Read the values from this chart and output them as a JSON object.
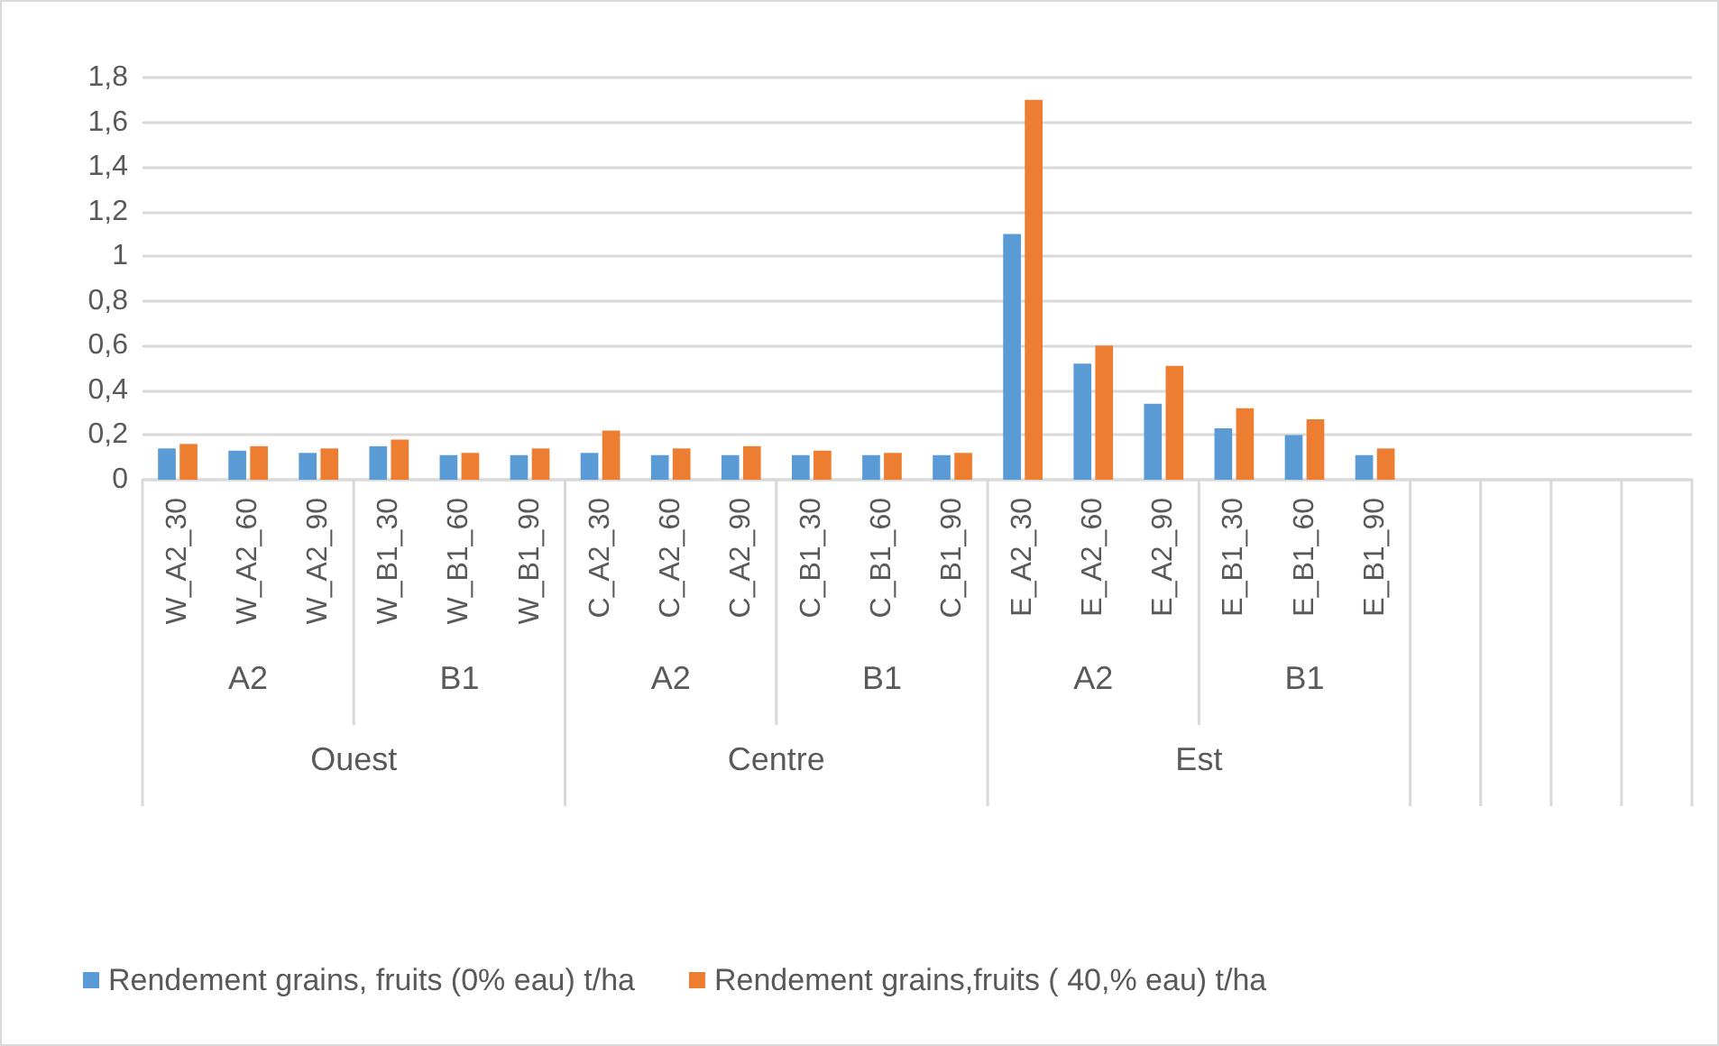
{
  "chart_data": {
    "type": "bar",
    "categories": [
      "W_A2_30",
      "W_A2_60",
      "W_A2_90",
      "W_B1_30",
      "W_B1_60",
      "W_B1_90",
      "C_A2_30",
      "C_A2_60",
      "C_A2_90",
      "C_B1_30",
      "C_B1_60",
      "C_B1_90",
      "E_A2_30",
      "E_A2_60",
      "E_A2_90",
      "E_B1_30",
      "E_B1_60",
      "E_B1_90",
      null,
      null,
      null,
      null
    ],
    "series": [
      {
        "name": "Rendement grains, fruits (0% eau) t/ha",
        "color": "#5b9bd5",
        "values": [
          0.14,
          0.13,
          0.12,
          0.15,
          0.11,
          0.11,
          0.12,
          0.11,
          0.11,
          0.11,
          0.11,
          0.11,
          1.1,
          0.52,
          0.34,
          0.23,
          0.2,
          0.11,
          null,
          null,
          null,
          null
        ]
      },
      {
        "name": "Rendement grains,fruits ( 40,% eau) t/ha",
        "color": "#ed7d31",
        "values": [
          0.16,
          0.15,
          0.14,
          0.18,
          0.12,
          0.14,
          0.22,
          0.14,
          0.15,
          0.13,
          0.12,
          0.12,
          1.7,
          0.6,
          0.51,
          0.32,
          0.27,
          0.14,
          null,
          null,
          null,
          null
        ]
      }
    ],
    "ylim": [
      0,
      1.8
    ],
    "yticks": [
      0,
      {
        "value": 0.2,
        "label": "0,2"
      },
      {
        "value": 0.4,
        "label": "0,4"
      },
      {
        "value": 0.6,
        "label": "0,6"
      },
      {
        "value": 0.8,
        "label": "0,8"
      },
      1,
      {
        "value": 1.2,
        "label": "1,2"
      },
      {
        "value": 1.4,
        "label": "1,4"
      },
      {
        "value": 1.6,
        "label": "1,6"
      },
      {
        "value": 1.8,
        "label": "1,8"
      }
    ],
    "grid": "y",
    "legend": "bottom left",
    "annotations": [
      "A2",
      "B1",
      "A2",
      "B1",
      "A2",
      "B1",
      "Ouest",
      "Centre",
      "Est"
    ]
  }
}
